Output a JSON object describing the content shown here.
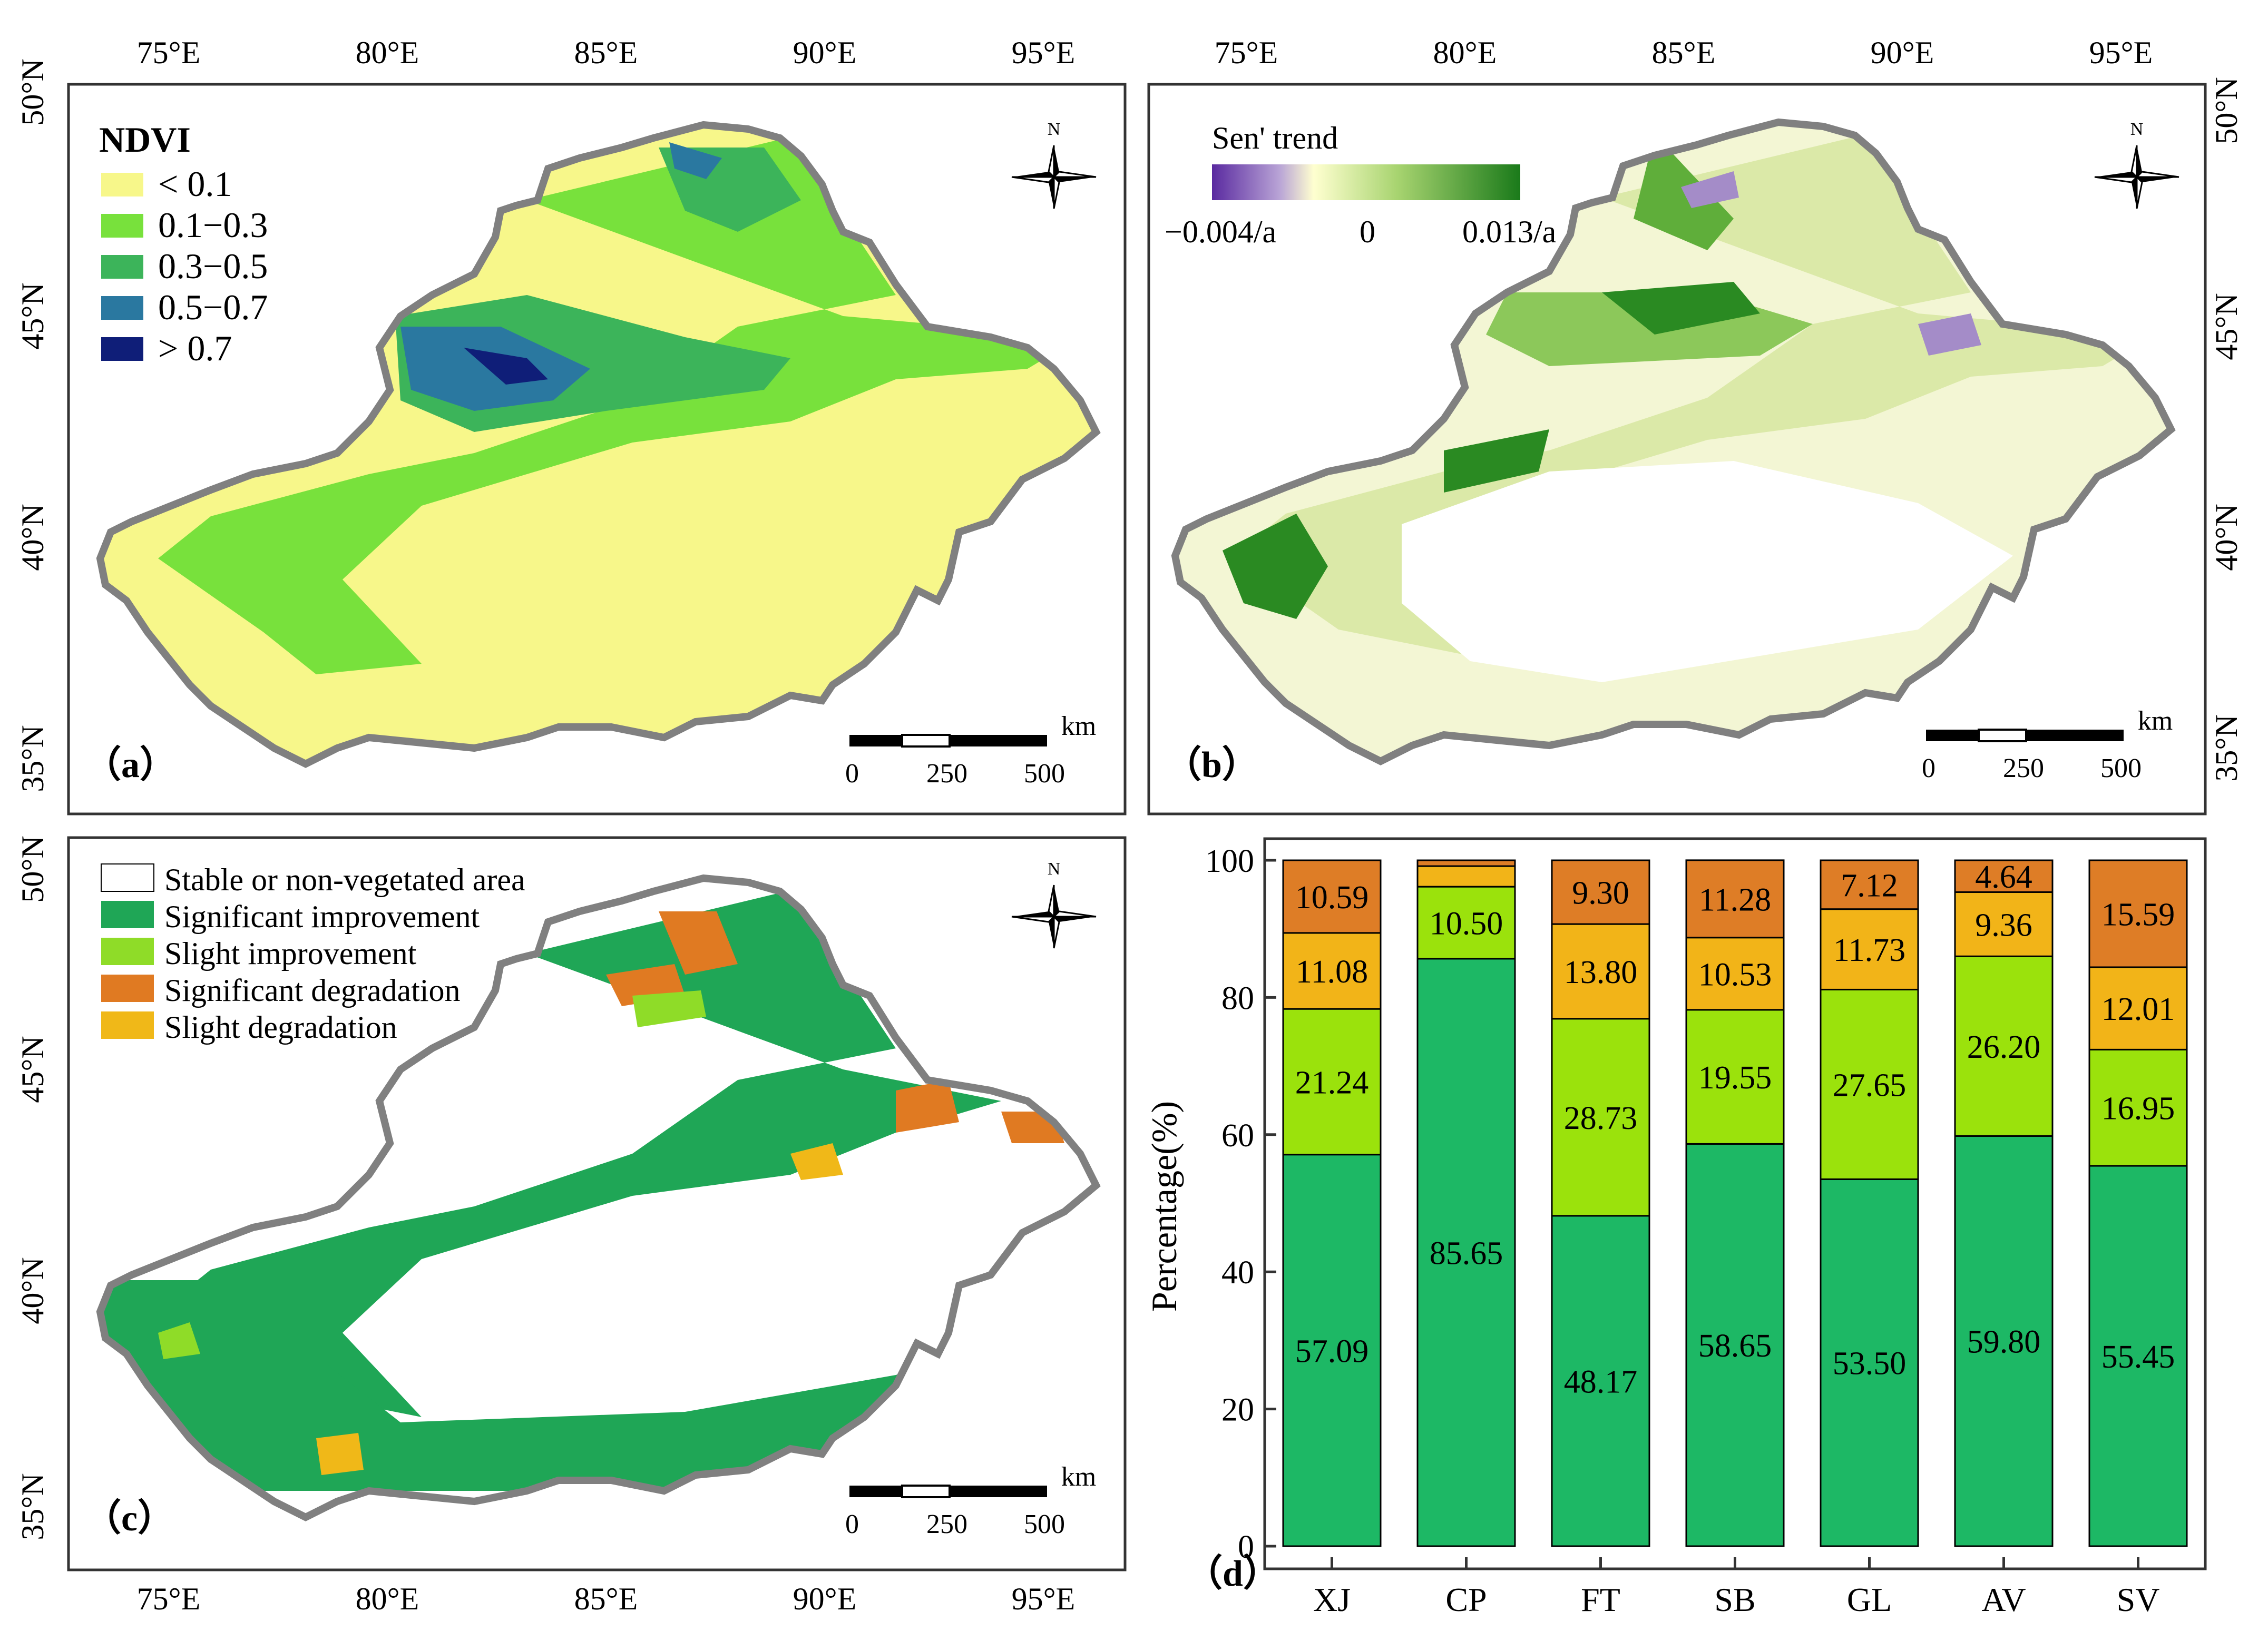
{
  "panels": {
    "a": {
      "label": "（a）",
      "legend_title": "NDVI",
      "legend": [
        {
          "label": "< 0.1",
          "color": "#f7f78a"
        },
        {
          "label": "0.1−0.3",
          "color": "#78e13c"
        },
        {
          "label": "0.3−0.5",
          "color": "#3cb45a"
        },
        {
          "label": "0.5−0.7",
          "color": "#2a78a0"
        },
        {
          "label": "> 0.7",
          "color": "#0f1e78"
        }
      ]
    },
    "b": {
      "label": "（b）",
      "legend_title": "Sen' trend",
      "legend_min": "−0.004/a",
      "legend_mid": "0",
      "legend_max": "0.013/a"
    },
    "c": {
      "label": "（c）",
      "legend": [
        {
          "label": "Stable or non-vegetated area",
          "color": "#ffffff"
        },
        {
          "label": "Significant improvement",
          "color": "#1fa656"
        },
        {
          "label": "Slight improvement",
          "color": "#8fdc28"
        },
        {
          "label": "Significant degradation",
          "color": "#e07a22"
        },
        {
          "label": "Slight degradation",
          "color": "#f0b818"
        }
      ]
    },
    "d": {
      "label": "（d）"
    }
  },
  "map_common": {
    "lon_labels": [
      "75°E",
      "80°E",
      "85°E",
      "90°E",
      "95°E"
    ],
    "lat_labels": [
      "50°N",
      "45°N",
      "40°N",
      "35°N"
    ],
    "north": "N",
    "scale_unit": "km",
    "scale_ticks": [
      "0",
      "250",
      "500"
    ]
  },
  "chart_data": {
    "type": "bar",
    "stacked": true,
    "categories": [
      "XJ",
      "CP",
      "FT",
      "SB",
      "GL",
      "AV",
      "SV"
    ],
    "ylabel": "Percentage(%)",
    "ylim": [
      0,
      100
    ],
    "yticks": [
      0,
      20,
      40,
      60,
      80,
      100
    ],
    "series": [
      {
        "name": "Significant improvement",
        "color": "#1db865",
        "values": [
          57.09,
          85.65,
          48.17,
          58.65,
          53.5,
          59.8,
          55.45
        ]
      },
      {
        "name": "Slight improvement",
        "color": "#9be20c",
        "values": [
          21.24,
          10.5,
          28.73,
          19.55,
          27.65,
          26.2,
          16.95
        ]
      },
      {
        "name": "Slight degradation",
        "color": "#f2b418",
        "values": [
          11.08,
          3.0,
          13.8,
          10.53,
          11.73,
          9.36,
          12.01
        ]
      },
      {
        "name": "Significant degradation",
        "color": "#de7d26",
        "values": [
          10.59,
          0.85,
          9.3,
          11.28,
          7.12,
          4.64,
          15.59
        ]
      }
    ],
    "data_labels": [
      [
        "57.09",
        "85.65",
        "48.17",
        "58.65",
        "53.50",
        "59.80",
        "55.45"
      ],
      [
        "21.24",
        "10.50",
        "28.73",
        "19.55",
        "27.65",
        "26.20",
        "16.95"
      ],
      [
        "11.08",
        "",
        "13.80",
        "10.53",
        "11.73",
        "9.36",
        "12.01"
      ],
      [
        "10.59",
        "",
        "9.30",
        "11.28",
        "7.12",
        "4.64",
        "15.59"
      ]
    ]
  }
}
